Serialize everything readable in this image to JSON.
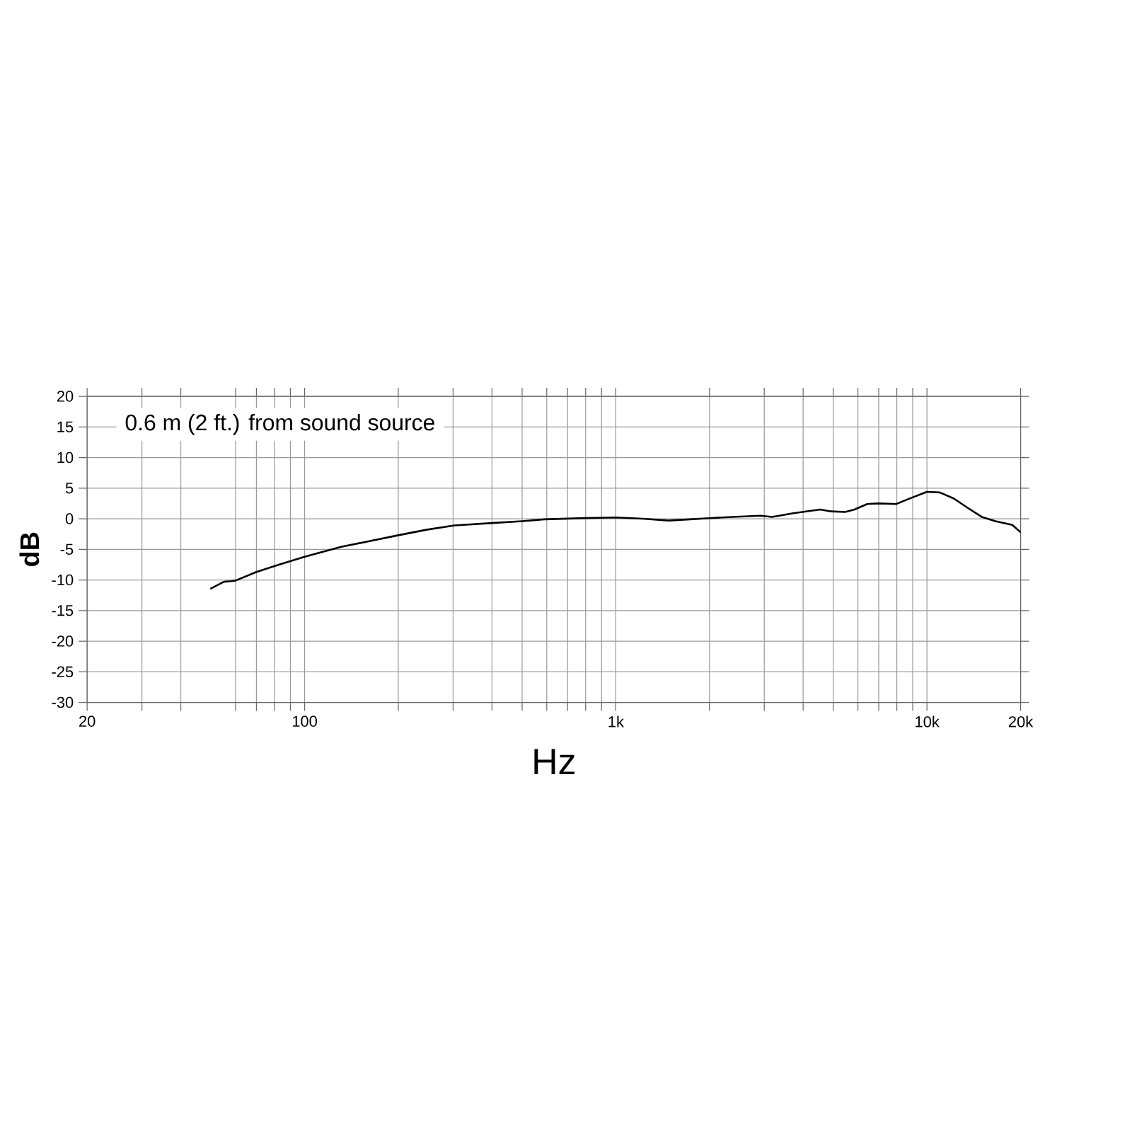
{
  "chart_data": {
    "type": "line",
    "xlabel": "Hz",
    "ylabel": "dB",
    "annotations": [
      "0.6 m (2 ft.) from sound source"
    ],
    "x": [
      50,
      55,
      58,
      60,
      70,
      84,
      100,
      131,
      200,
      246,
      303,
      400,
      500,
      590,
      800,
      1000,
      1220,
      1480,
      1730,
      2000,
      2370,
      2920,
      3180,
      3720,
      4540,
      4920,
      5460,
      5850,
      6430,
      6970,
      7960,
      8900,
      10000,
      11000,
      12200,
      13500,
      15000,
      16600,
      18800,
      20000
    ],
    "series": [
      {
        "color": "#000000",
        "values": [
          -11.4,
          -10.3,
          -10.2,
          -10.1,
          -8.7,
          -7.4,
          -6.2,
          -4.6,
          -2.7,
          -1.8,
          -1.1,
          -0.7,
          -0.4,
          -0.1,
          0.1,
          0.2,
          0.0,
          -0.3,
          -0.1,
          0.1,
          0.3,
          0.5,
          0.3,
          0.9,
          1.5,
          1.2,
          1.1,
          1.5,
          2.4,
          2.5,
          2.4,
          3.4,
          4.4,
          4.3,
          3.3,
          1.8,
          0.3,
          -0.4,
          -1.0,
          -2.2
        ]
      }
    ],
    "xlim": [
      20,
      20000
    ],
    "ylim": [
      -30,
      20
    ],
    "xticks": [
      20,
      {
        "value": 30,
        "label": null
      },
      {
        "value": 40,
        "label": null
      },
      {
        "value": 60,
        "label": null
      },
      {
        "value": 70,
        "label": null
      },
      {
        "value": 80,
        "label": null
      },
      {
        "value": 90,
        "label": null
      },
      100,
      {
        "value": 200,
        "label": null
      },
      {
        "value": 300,
        "label": null
      },
      {
        "value": 400,
        "label": null
      },
      {
        "value": 500,
        "label": null
      },
      {
        "value": 600,
        "label": null
      },
      {
        "value": 700,
        "label": null
      },
      {
        "value": 800,
        "label": null
      },
      {
        "value": 900,
        "label": null
      },
      {
        "value": 1000,
        "label": "1k"
      },
      {
        "value": 2000,
        "label": null
      },
      {
        "value": 3000,
        "label": null
      },
      {
        "value": 4000,
        "label": null
      },
      {
        "value": 5000,
        "label": null
      },
      {
        "value": 6000,
        "label": null
      },
      {
        "value": 7000,
        "label": null
      },
      {
        "value": 8000,
        "label": null
      },
      {
        "value": 9000,
        "label": null
      },
      {
        "value": 10000,
        "label": "10k"
      },
      {
        "value": 20000,
        "label": "20k"
      }
    ],
    "yticks": [
      -30,
      -25,
      -20,
      -15,
      -10,
      -5,
      0,
      5,
      10,
      15,
      20
    ],
    "log": "x",
    "grid": true
  }
}
